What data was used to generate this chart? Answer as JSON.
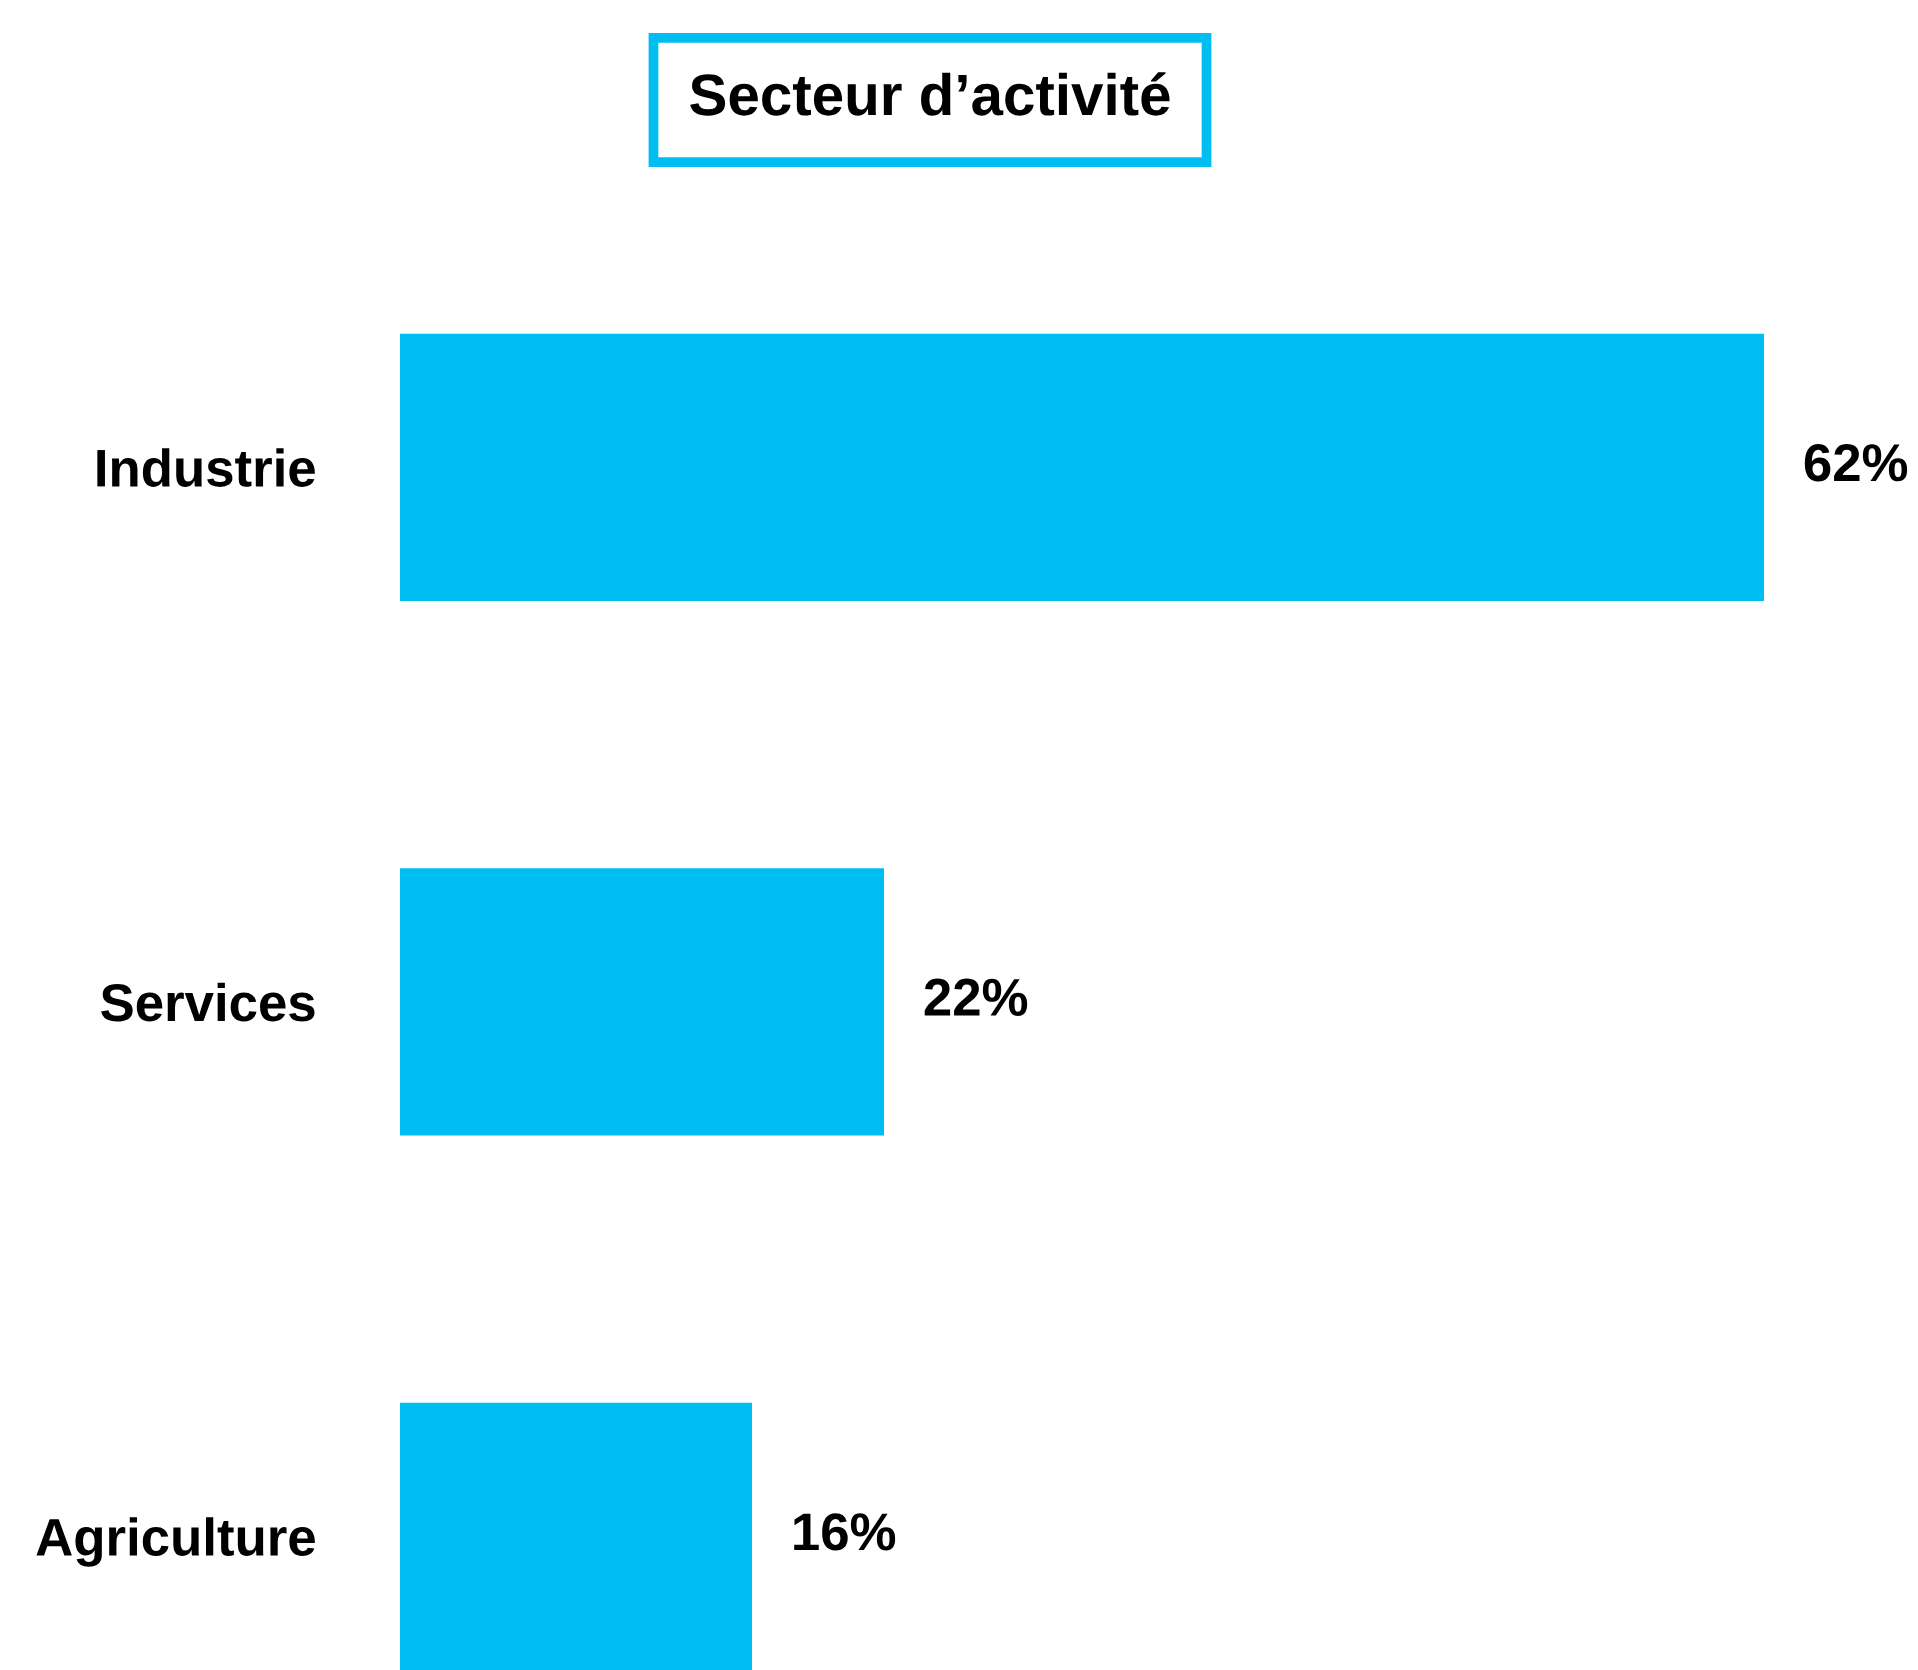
{
  "chart_data": {
    "type": "bar",
    "orientation": "horizontal",
    "title": "Secteur d’activité",
    "categories": [
      "Industrie",
      "Services",
      "Agriculture"
    ],
    "values": [
      62,
      22,
      16
    ],
    "color": "#00bef2",
    "value_labels": [
      "62%",
      "22%",
      "16%"
    ],
    "grid": false,
    "legend": false
  }
}
